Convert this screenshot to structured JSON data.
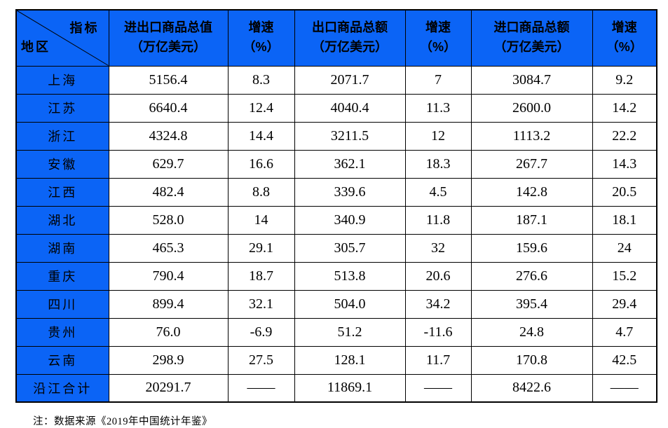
{
  "table": {
    "corner": {
      "indicator_label": "指标",
      "region_label": "地区"
    },
    "columns": [
      {
        "title": "进出口商品总值",
        "unit": "（万亿美元）"
      },
      {
        "title": "增速",
        "unit": "（%）"
      },
      {
        "title": "出口商品总额",
        "unit": "（万亿美元）"
      },
      {
        "title": "增速",
        "unit": "（%）"
      },
      {
        "title": "进口商品总额",
        "unit": "（万亿美元）"
      },
      {
        "title": "增速",
        "unit": "（%）"
      }
    ],
    "rows": [
      {
        "region": "上海",
        "values": [
          "5156.4",
          "8.3",
          "2071.7",
          "7",
          "3084.7",
          "9.2"
        ]
      },
      {
        "region": "江苏",
        "values": [
          "6640.4",
          "12.4",
          "4040.4",
          "11.3",
          "2600.0",
          "14.2"
        ]
      },
      {
        "region": "浙江",
        "values": [
          "4324.8",
          "14.4",
          "3211.5",
          "12",
          "1113.2",
          "22.2"
        ]
      },
      {
        "region": "安徽",
        "values": [
          "629.7",
          "16.6",
          "362.1",
          "18.3",
          "267.7",
          "14.3"
        ]
      },
      {
        "region": "江西",
        "values": [
          "482.4",
          "8.8",
          "339.6",
          "4.5",
          "142.8",
          "20.5"
        ]
      },
      {
        "region": "湖北",
        "values": [
          "528.0",
          "14",
          "340.9",
          "11.8",
          "187.1",
          "18.1"
        ]
      },
      {
        "region": "湖南",
        "values": [
          "465.3",
          "29.1",
          "305.7",
          "32",
          "159.6",
          "24"
        ]
      },
      {
        "region": "重庆",
        "values": [
          "790.4",
          "18.7",
          "513.8",
          "20.6",
          "276.6",
          "15.2"
        ]
      },
      {
        "region": "四川",
        "values": [
          "899.4",
          "32.1",
          "504.0",
          "34.2",
          "395.4",
          "29.4"
        ]
      },
      {
        "region": "贵州",
        "values": [
          "76.0",
          "-6.9",
          "51.2",
          "-11.6",
          "24.8",
          "4.7"
        ]
      },
      {
        "region": "云南",
        "values": [
          "298.9",
          "27.5",
          "128.1",
          "11.7",
          "170.8",
          "42.5"
        ]
      },
      {
        "region": "沿江合计",
        "values": [
          "20291.7",
          "——",
          "11869.1",
          "——",
          "8422.6",
          "——"
        ]
      }
    ]
  },
  "note": "注：数据来源《2019年中国统计年鉴》",
  "colors": {
    "header_blue": "#0b64f6",
    "border": "#000000",
    "text": "#000000",
    "background": "#ffffff"
  }
}
